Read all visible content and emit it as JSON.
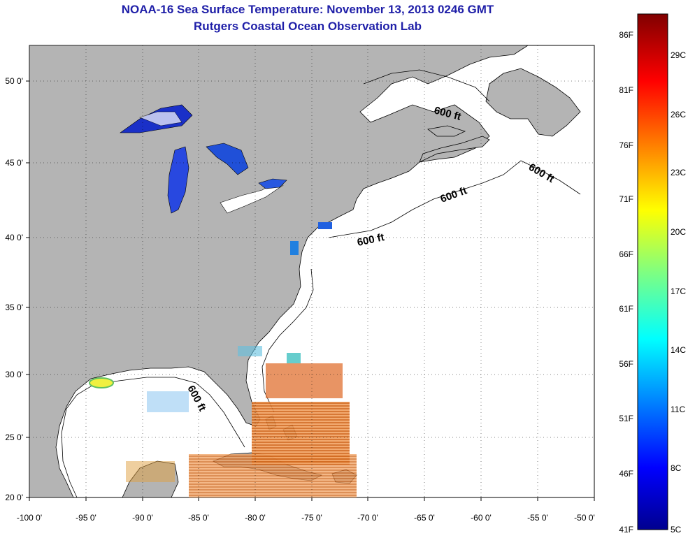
{
  "title": "NOAA-16 Sea Surface Temperature:  November 13, 2013 0246 GMT",
  "subtitle": "Rutgers Coastal Ocean Observation Lab",
  "map": {
    "lat_labels": [
      "50 0'",
      "45 0'",
      "40 0'",
      "35 0'",
      "30 0'",
      "25 0'",
      "20 0'"
    ],
    "lon_labels": [
      "-100 0'",
      "-95 0'",
      "-90 0'",
      "-85 0'",
      "-80 0'",
      "-75 0'",
      "-70 0'",
      "-65 0'",
      "-60 0'",
      "-55 0'",
      "-50 0'"
    ],
    "contour_label": "600 ft",
    "land_color": "#b4b4b4",
    "ocean_color": "#ffffff"
  },
  "colorbar": {
    "f_labels": [
      "86F",
      "81F",
      "76F",
      "71F",
      "66F",
      "61F",
      "56F",
      "51F",
      "46F",
      "41F"
    ],
    "c_labels": [
      "29C",
      "26C",
      "23C",
      "20C",
      "17C",
      "14C",
      "11C",
      "8C",
      "5C"
    ]
  }
}
